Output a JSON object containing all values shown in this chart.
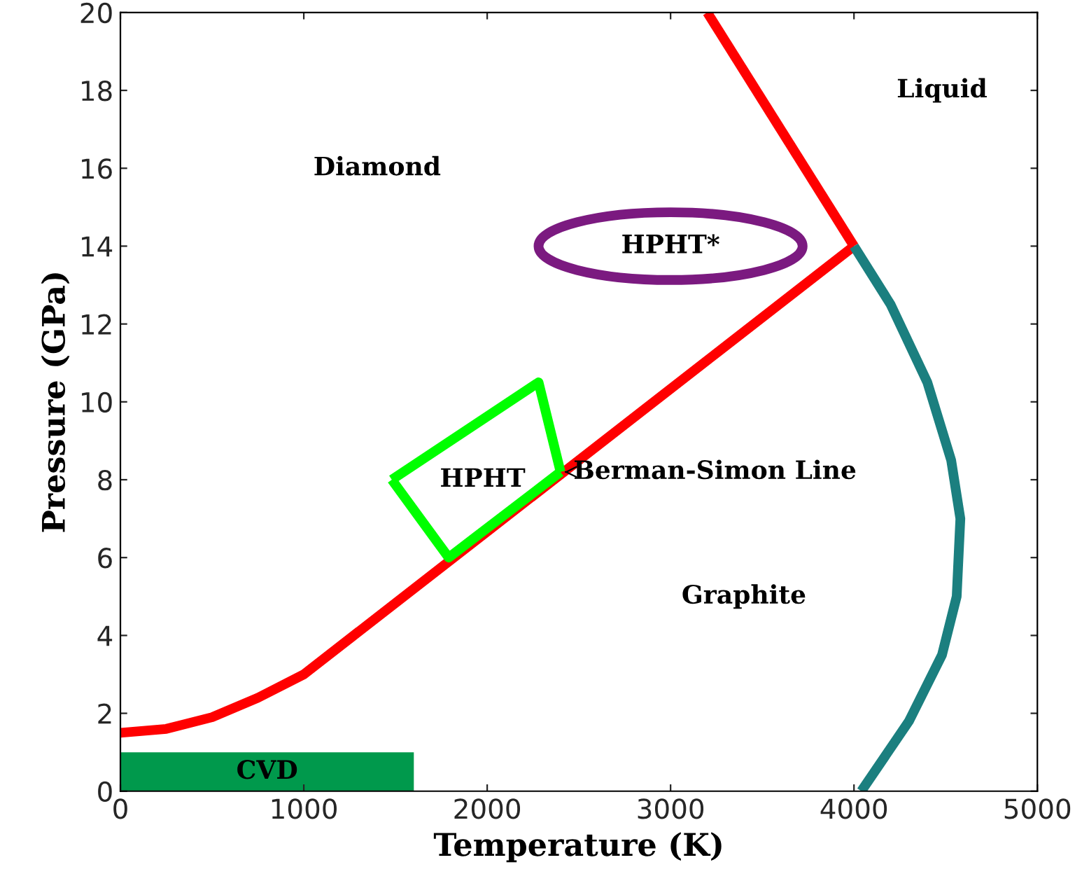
{
  "chart_data": {
    "type": "line",
    "xlabel": "Temperature (K)",
    "ylabel": "Pressure (GPa)",
    "xlim": [
      0,
      5000
    ],
    "ylim": [
      0,
      20
    ],
    "xticks": [
      0,
      1000,
      2000,
      3000,
      4000,
      5000
    ],
    "yticks": [
      0,
      2,
      4,
      6,
      8,
      10,
      12,
      14,
      16,
      18,
      20
    ],
    "grid": false,
    "legend": false,
    "marker": "none",
    "line_style": "solid",
    "series": [
      {
        "type": "area",
        "color": "#00994c",
        "x": [
          0,
          1600
        ],
        "values": [
          1,
          1
        ]
      },
      {
        "color": "#ff0000",
        "x": [
          0,
          250,
          500,
          750,
          1000,
          4000
        ],
        "values": [
          1.5,
          1.6,
          1.9,
          2.4,
          3,
          14
        ]
      },
      {
        "color": "#ff0000",
        "x": [
          4000,
          3200
        ],
        "values": [
          14,
          20
        ]
      },
      {
        "color": "#1b7f7f",
        "x": [
          4000,
          4200,
          4400,
          4530,
          4580,
          4560,
          4480,
          4300,
          4040
        ],
        "values": [
          14,
          12.5,
          10.5,
          8.5,
          7,
          5,
          3.5,
          1.8,
          0
        ]
      },
      {
        "color": "#00ff00",
        "x": [
          1480,
          2280,
          2400
        ],
        "values": [
          8,
          10.5,
          8.2
        ]
      },
      {
        "color": "#00ff00",
        "x": [
          1480,
          1790,
          2400
        ],
        "values": [
          8,
          6,
          8.2
        ]
      }
    ],
    "annotations": [
      "CVD",
      "Diamond",
      "Liquid",
      "Graphite",
      "HPHT",
      "HPHT*",
      {
        "text": "Berman-Simon Line",
        "x": 2400,
        "y": 8.2
      }
    ]
  }
}
